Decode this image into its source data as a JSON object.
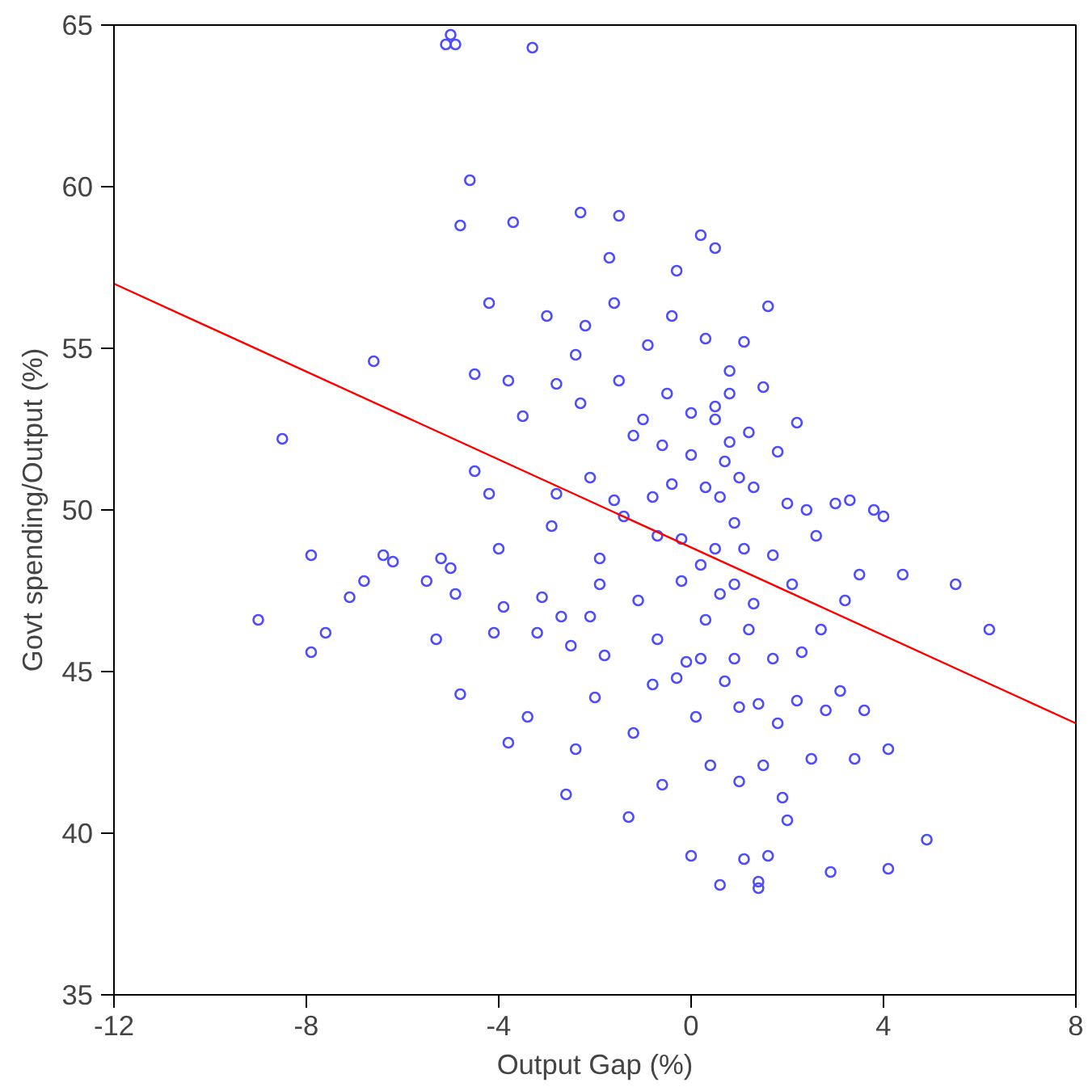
{
  "chart_data": {
    "type": "scatter",
    "xlabel": "Output Gap (%)",
    "ylabel": "Govt spending/Output (%)",
    "xlim": [
      -12,
      8
    ],
    "ylim": [
      35,
      65
    ],
    "xticks": [
      -12,
      -8,
      -4,
      0,
      4,
      8
    ],
    "yticks": [
      35,
      40,
      45,
      50,
      55,
      60,
      65
    ],
    "grid": false,
    "marker": "circle",
    "series": [
      {
        "color": "#4d4dff",
        "x": [
          -9,
          -8.5,
          -7.9,
          -7.9,
          -7.6,
          -7.1,
          -6.8,
          -6.6,
          -6.4,
          -6.2,
          -5.5,
          -5.3,
          -5.2,
          -5,
          -4.9,
          -4.8,
          -5.1,
          -5,
          -4.9,
          -3.3,
          -4.8,
          -4.6,
          -4.5,
          -4.5,
          -4.2,
          -4.2,
          -4.1,
          -4,
          -3.9,
          -3.8,
          -3.8,
          -3.7,
          -3.5,
          -3.4,
          -3.2,
          -3.1,
          -3,
          -2.9,
          -2.8,
          -2.8,
          -2.6,
          -2.7,
          -2.5,
          -2.4,
          -2.3,
          -2.4,
          -2.3,
          -2.2,
          -2.1,
          -2,
          -1.9,
          -1.8,
          -1.9,
          -1.7,
          -1.6,
          -1.5,
          -1.5,
          -1.4,
          -1.3,
          -1.2,
          -1.1,
          -1,
          -0.9,
          -0.8,
          -0.7,
          -0.7,
          -0.6,
          -0.5,
          -0.4,
          -0.3,
          -0.3,
          -0.2,
          -0.1,
          0,
          0,
          0.1,
          0.2,
          0.2,
          0.3,
          0.3,
          0.4,
          0.5,
          0.5,
          0.6,
          0.6,
          0.7,
          0.8,
          0.8,
          0.9,
          0.9,
          1,
          1,
          1.1,
          1.1,
          1.2,
          1.2,
          1.3,
          1.4,
          1.4,
          1.4,
          1.5,
          1.5,
          1.6,
          1.7,
          1.7,
          1.8,
          1.8,
          1.9,
          2,
          2.1,
          2.2,
          2.2,
          2.3,
          2.4,
          2.5,
          2.6,
          2.7,
          2.8,
          2.9,
          3,
          3.1,
          3.2,
          3.3,
          3.4,
          3.5,
          3.6,
          3.8,
          4,
          4.1,
          4.1,
          4.4,
          4.9,
          5.5,
          6.2,
          0.6,
          1.1,
          1.6,
          -1.2,
          -0.6,
          0,
          0.5,
          0.8,
          -0.4,
          0.3,
          1,
          0.5,
          -0.2,
          -1.6,
          -2.1,
          0.9,
          0.2,
          -0.8,
          1.3,
          0.7,
          2
        ],
        "values": [
          46.6,
          52.2,
          48.6,
          45.6,
          46.2,
          47.3,
          47.8,
          54.6,
          48.6,
          48.4,
          47.8,
          46,
          48.5,
          48.2,
          47.4,
          44.3,
          64.4,
          64.7,
          64.4,
          64.3,
          58.8,
          60.2,
          54.2,
          51.2,
          50.5,
          56.4,
          46.2,
          48.8,
          47,
          42.8,
          54,
          58.9,
          52.9,
          43.6,
          46.2,
          47.3,
          56,
          49.5,
          53.9,
          50.5,
          41.2,
          46.7,
          45.8,
          42.6,
          59.2,
          54.8,
          53.3,
          55.7,
          46.7,
          44.2,
          47.7,
          45.5,
          48.5,
          57.8,
          56.4,
          59.1,
          54,
          49.8,
          40.5,
          43.1,
          47.2,
          52.8,
          55.1,
          50.4,
          49.2,
          46,
          41.5,
          53.6,
          56,
          57.4,
          44.8,
          47.8,
          45.3,
          39.3,
          51.7,
          43.6,
          58.5,
          48.3,
          55.3,
          46.6,
          42.1,
          58.1,
          52.8,
          50.4,
          47.4,
          44.7,
          53.6,
          54.3,
          49.6,
          45.4,
          43.9,
          41.6,
          55.2,
          48.8,
          52.4,
          46.3,
          50.7,
          44,
          38.5,
          38.3,
          42.1,
          53.8,
          56.3,
          48.6,
          45.4,
          51.8,
          43.4,
          41.1,
          40.4,
          47.7,
          44.1,
          52.7,
          45.6,
          50,
          42.3,
          49.2,
          46.3,
          43.8,
          38.8,
          50.2,
          44.4,
          47.2,
          50.3,
          42.3,
          48,
          43.8,
          50,
          49.8,
          42.6,
          38.9,
          48,
          39.8,
          47.7,
          46.3,
          38.4,
          39.2,
          39.3,
          52.3,
          52,
          53,
          53.2,
          52.1,
          50.8,
          50.7,
          51,
          48.8,
          49.1,
          50.3,
          51,
          47.7,
          45.4,
          44.6,
          47.1,
          51.5,
          50.2
        ]
      },
      {
        "type": "line",
        "color": "#ff0000",
        "x": [
          -12,
          8
        ],
        "values": [
          57,
          43.4
        ],
        "marker": "none",
        "line_style": "solid"
      }
    ]
  }
}
